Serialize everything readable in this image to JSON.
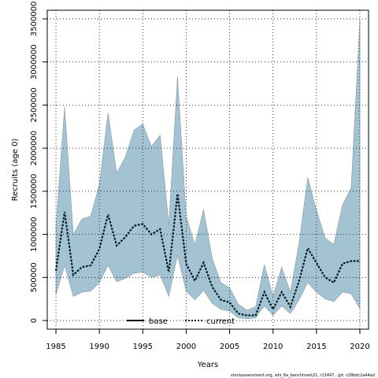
{
  "footer": "stockassessment.org, whi_6a_benchmark21, r13497 , git: c28bdc2a44ad",
  "chart_data": {
    "type": "line",
    "xlabel": "Years",
    "ylabel": "Recruits (age 0)",
    "xlim": [
      1984,
      2021
    ],
    "ylim": [
      -100000,
      3600000
    ],
    "x_ticks": [
      1985,
      1990,
      1995,
      2000,
      2005,
      2010,
      2015,
      2020
    ],
    "y_ticks": [
      0,
      500000,
      1000000,
      1500000,
      2000000,
      2500000,
      3000000,
      3500000
    ],
    "grid": true,
    "legend_position": "bottom-center",
    "legend": [
      {
        "name": "base",
        "style": "solid",
        "color": "#000000"
      },
      {
        "name": "current",
        "style": "dotted",
        "color": "#000000"
      }
    ],
    "band_color": "#a3c3d3",
    "current_line_color": "#4a98bb",
    "years": [
      1985,
      1986,
      1987,
      1988,
      1989,
      1990,
      1991,
      1992,
      1993,
      1994,
      1995,
      1996,
      1997,
      1998,
      1999,
      2000,
      2001,
      2002,
      2003,
      2004,
      2005,
      2006,
      2007,
      2008,
      2009,
      2010,
      2011,
      2012,
      2013,
      2014,
      2015,
      2016,
      2017,
      2018,
      2019,
      2020
    ],
    "series": [
      {
        "name": "base",
        "values": [
          580000,
          1260000,
          530000,
          620000,
          640000,
          830000,
          1230000,
          870000,
          970000,
          1100000,
          1120000,
          1000000,
          1060000,
          560000,
          1470000,
          660000,
          460000,
          670000,
          390000,
          240000,
          210000,
          80000,
          60000,
          60000,
          330000,
          130000,
          330000,
          160000,
          460000,
          840000,
          670000,
          500000,
          440000,
          660000,
          690000,
          690000
        ]
      },
      {
        "name": "current",
        "values": [
          580000,
          1260000,
          530000,
          620000,
          640000,
          830000,
          1230000,
          870000,
          970000,
          1100000,
          1120000,
          1000000,
          1060000,
          560000,
          1470000,
          660000,
          460000,
          670000,
          390000,
          240000,
          210000,
          80000,
          60000,
          60000,
          330000,
          130000,
          330000,
          160000,
          460000,
          840000,
          670000,
          500000,
          440000,
          660000,
          690000,
          690000
        ]
      }
    ],
    "upper": [
      1100000,
      2480000,
      1000000,
      1180000,
      1210000,
      1580000,
      2410000,
      1710000,
      1900000,
      2210000,
      2280000,
      2020000,
      2150000,
      1110000,
      2830000,
      1210000,
      880000,
      1290000,
      720000,
      440000,
      380000,
      190000,
      120000,
      160000,
      650000,
      280000,
      620000,
      330000,
      900000,
      1660000,
      1280000,
      960000,
      880000,
      1340000,
      1540000,
      3490000
    ],
    "lower": [
      300000,
      640000,
      280000,
      330000,
      340000,
      440000,
      640000,
      450000,
      490000,
      550000,
      560000,
      500000,
      530000,
      280000,
      760000,
      340000,
      240000,
      350000,
      200000,
      130000,
      110000,
      30000,
      20000,
      30000,
      170000,
      60000,
      170000,
      80000,
      240000,
      440000,
      330000,
      250000,
      220000,
      330000,
      310000,
      140000
    ]
  }
}
